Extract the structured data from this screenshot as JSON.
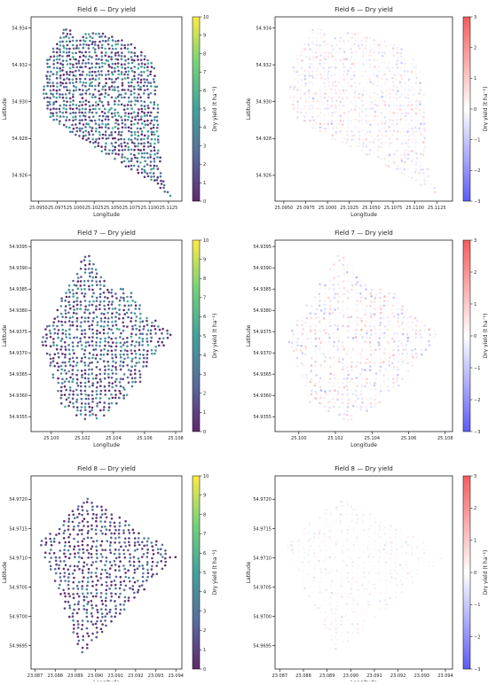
{
  "colors": {
    "viridis": [
      "#440154",
      "#3b528b",
      "#21918c",
      "#5ec962",
      "#fde725"
    ],
    "bwr": [
      "#3f3ff5",
      "#ffffff",
      "#f54040"
    ]
  },
  "chart_data": [
    {
      "type": "scatter",
      "title": "Field 6 — Dry yield",
      "xlabel": "Longitude",
      "ylabel": "Latitude",
      "colorbar_label": "Dry yield (t ha⁻¹)",
      "colormap": "viridis",
      "xlim": [
        25.094,
        25.1143
      ],
      "ylim": [
        54.9246,
        54.9346
      ],
      "xticks": [
        "25.0950",
        "25.0975",
        "25.1000",
        "25.1025",
        "25.1050",
        "25.1075",
        "25.1100",
        "25.1125"
      ],
      "xtick_values": [
        25.095,
        25.0975,
        25.1,
        25.1025,
        25.105,
        25.1075,
        25.11,
        25.1125
      ],
      "yticks": [
        "54.926",
        "54.928",
        "54.930",
        "54.932",
        "54.934"
      ],
      "ytick_values": [
        54.926,
        54.928,
        54.93,
        54.932,
        54.934
      ],
      "cbar_ticks": [
        "0",
        "1",
        "2",
        "3",
        "4",
        "5",
        "6",
        "7",
        "8",
        "9",
        "10"
      ],
      "cbar_range": [
        0,
        10
      ],
      "boundary": [
        [
          25.0962,
          54.9323
        ],
        [
          25.0987,
          54.9342
        ],
        [
          25.1004,
          54.9332
        ],
        [
          25.1009,
          54.9337
        ],
        [
          25.1032,
          54.9338
        ],
        [
          25.106,
          54.9334
        ],
        [
          25.1082,
          54.933
        ],
        [
          25.1109,
          54.9318
        ],
        [
          25.1115,
          54.926
        ],
        [
          25.113,
          54.9248
        ],
        [
          25.1095,
          54.9258
        ],
        [
          25.0965,
          54.929
        ],
        [
          25.0955,
          54.9305
        ]
      ],
      "rows": 46,
      "cols": 40,
      "value_range": [
        0,
        6
      ]
    },
    {
      "type": "scatter",
      "title": "Field 6 — Dry yield",
      "xlabel": "Longitude",
      "ylabel": "Latitude",
      "colorbar_label": "Dry yield (t ha⁻¹)",
      "colormap": "bwr",
      "xlim": [
        25.094,
        25.1143
      ],
      "ylim": [
        54.9246,
        54.9346
      ],
      "xticks": [
        "25.0950",
        "25.0975",
        "25.1000",
        "25.1025",
        "25.1050",
        "25.1075",
        "25.1100",
        "25.1125"
      ],
      "xtick_values": [
        25.095,
        25.0975,
        25.1,
        25.1025,
        25.105,
        25.1075,
        25.11,
        25.1125
      ],
      "yticks": [
        "54.926",
        "54.928",
        "54.930",
        "54.932",
        "54.934"
      ],
      "ytick_values": [
        54.926,
        54.928,
        54.93,
        54.932,
        54.934
      ],
      "cbar_ticks": [
        "−3",
        "−2",
        "−1",
        "0",
        "1",
        "2",
        "3"
      ],
      "cbar_range": [
        -3,
        3
      ],
      "boundary": [
        [
          25.0962,
          54.9323
        ],
        [
          25.0987,
          54.9342
        ],
        [
          25.1004,
          54.9332
        ],
        [
          25.1009,
          54.9337
        ],
        [
          25.1032,
          54.9338
        ],
        [
          25.106,
          54.9334
        ],
        [
          25.1082,
          54.933
        ],
        [
          25.1109,
          54.9318
        ],
        [
          25.1115,
          54.926
        ],
        [
          25.113,
          54.9248
        ],
        [
          25.1095,
          54.9258
        ],
        [
          25.0965,
          54.929
        ],
        [
          25.0955,
          54.9305
        ]
      ],
      "rows": 46,
      "cols": 40,
      "value_range": [
        -1.5,
        1.5
      ]
    },
    {
      "type": "scatter",
      "title": "Field 7 — Dry yield",
      "xlabel": "Longitude",
      "ylabel": "Latitude",
      "colorbar_label": "Dry yield (t ha⁻¹)",
      "colormap": "viridis",
      "xlim": [
        25.0987,
        25.1084
      ],
      "ylim": [
        54.93515,
        54.93965
      ],
      "xticks": [
        "25.100",
        "25.102",
        "25.104",
        "25.106",
        "25.108"
      ],
      "xtick_values": [
        25.1,
        25.102,
        25.104,
        25.106,
        25.108
      ],
      "yticks": [
        "54.9355",
        "54.9360",
        "54.9365",
        "54.9370",
        "54.9375",
        "54.9380",
        "54.9385",
        "54.9390",
        "54.9395"
      ],
      "ytick_values": [
        54.9355,
        54.936,
        54.9365,
        54.937,
        54.9375,
        54.938,
        54.9385,
        54.939,
        54.9395
      ],
      "cbar_ticks": [
        "0",
        "1",
        "2",
        "3",
        "4",
        "5",
        "6",
        "7",
        "8",
        "9",
        "10"
      ],
      "cbar_range": [
        0,
        10
      ],
      "boundary": [
        [
          25.0993,
          54.93735
        ],
        [
          25.1023,
          54.9394
        ],
        [
          25.103,
          54.93895
        ],
        [
          25.1036,
          54.93865
        ],
        [
          25.1052,
          54.93845
        ],
        [
          25.1062,
          54.9379
        ],
        [
          25.1078,
          54.93745
        ],
        [
          25.1071,
          54.93705
        ],
        [
          25.1065,
          54.93685
        ],
        [
          25.1057,
          54.9363
        ],
        [
          25.1045,
          54.93585
        ],
        [
          25.1032,
          54.93545
        ],
        [
          25.1023,
          54.9354
        ],
        [
          25.1015,
          54.93555
        ],
        [
          25.1005,
          54.93585
        ],
        [
          25.1003,
          54.9362
        ]
      ],
      "rows": 42,
      "cols": 34,
      "value_range": [
        0,
        5.5
      ]
    },
    {
      "type": "scatter",
      "title": "Field 7 — Dry yield",
      "xlabel": "Longitude",
      "ylabel": "Latitude",
      "colorbar_label": "Dry yield (t ha⁻¹)",
      "colormap": "bwr",
      "xlim": [
        25.0987,
        25.1084
      ],
      "ylim": [
        54.93515,
        54.93965
      ],
      "xticks": [
        "25.100",
        "25.102",
        "25.104",
        "25.106",
        "25.108"
      ],
      "xtick_values": [
        25.1,
        25.102,
        25.104,
        25.106,
        25.108
      ],
      "yticks": [
        "54.9355",
        "54.9360",
        "54.9365",
        "54.9370",
        "54.9375",
        "54.9380",
        "54.9385",
        "54.9390",
        "54.9395"
      ],
      "ytick_values": [
        54.9355,
        54.936,
        54.9365,
        54.937,
        54.9375,
        54.938,
        54.9385,
        54.939,
        54.9395
      ],
      "cbar_ticks": [
        "−3",
        "−2",
        "−1",
        "0",
        "1",
        "2",
        "3"
      ],
      "cbar_range": [
        -3,
        3
      ],
      "boundary": [
        [
          25.0993,
          54.93735
        ],
        [
          25.1023,
          54.9394
        ],
        [
          25.103,
          54.93895
        ],
        [
          25.1036,
          54.93865
        ],
        [
          25.1052,
          54.93845
        ],
        [
          25.1062,
          54.9379
        ],
        [
          25.1078,
          54.93745
        ],
        [
          25.1071,
          54.93705
        ],
        [
          25.1065,
          54.93685
        ],
        [
          25.1057,
          54.9363
        ],
        [
          25.1045,
          54.93585
        ],
        [
          25.1032,
          54.93545
        ],
        [
          25.1023,
          54.9354
        ],
        [
          25.1015,
          54.93555
        ],
        [
          25.1005,
          54.93585
        ],
        [
          25.1003,
          54.9362
        ]
      ],
      "rows": 42,
      "cols": 34,
      "value_range": [
        -2,
        2
      ]
    },
    {
      "type": "scatter",
      "title": "Field 8 — Dry yield",
      "xlabel": "Longitude",
      "ylabel": "Latitude",
      "colorbar_label": "Dry yield (t ha⁻¹)",
      "colormap": "viridis",
      "xlim": [
        23.0868,
        23.0943
      ],
      "ylim": [
        54.9691,
        54.9724
      ],
      "xticks": [
        "23.087",
        "23.088",
        "23.089",
        "23.090",
        "23.091",
        "23.092",
        "23.093",
        "23.094"
      ],
      "xtick_values": [
        23.087,
        23.088,
        23.089,
        23.09,
        23.091,
        23.092,
        23.093,
        23.094
      ],
      "yticks": [
        "54.9695",
        "54.9700",
        "54.9705",
        "54.9710",
        "54.9715",
        "54.9720"
      ],
      "ytick_values": [
        54.9695,
        54.97,
        54.9705,
        54.971,
        54.9715,
        54.972
      ],
      "cbar_ticks": [
        "0",
        "1",
        "2",
        "3",
        "4",
        "5",
        "6",
        "7",
        "8",
        "9",
        "10"
      ],
      "cbar_range": [
        0,
        10
      ],
      "boundary": [
        [
          23.0872,
          54.97125
        ],
        [
          23.0896,
          54.97205
        ],
        [
          23.0941,
          54.97105
        ],
        [
          23.0893,
          54.96935
        ]
      ],
      "rows": 40,
      "cols": 30,
      "value_range": [
        0,
        4
      ]
    },
    {
      "type": "scatter",
      "title": "Field 8 — Dry yield",
      "xlabel": "Longitude",
      "ylabel": "Latitude",
      "colorbar_label": "Dry yield (t ha⁻¹)",
      "colormap": "bwr",
      "xlim": [
        23.0868,
        23.0943
      ],
      "ylim": [
        54.9691,
        54.9724
      ],
      "xticks": [
        "23.087",
        "23.088",
        "23.089",
        "23.090",
        "23.091",
        "23.092",
        "23.093",
        "23.094"
      ],
      "xtick_values": [
        23.087,
        23.088,
        23.089,
        23.09,
        23.091,
        23.092,
        23.093,
        23.094
      ],
      "yticks": [
        "54.9695",
        "54.9700",
        "54.9705",
        "54.9710",
        "54.9715",
        "54.9720"
      ],
      "ytick_values": [
        54.9695,
        54.97,
        54.9705,
        54.971,
        54.9715,
        54.972
      ],
      "cbar_ticks": [
        "−3",
        "−2",
        "−1",
        "0",
        "1",
        "2",
        "3"
      ],
      "cbar_range": [
        -3,
        3
      ],
      "boundary": [
        [
          23.0872,
          54.97125
        ],
        [
          23.0896,
          54.97205
        ],
        [
          23.0941,
          54.97105
        ],
        [
          23.0893,
          54.96935
        ]
      ],
      "rows": 40,
      "cols": 30,
      "value_range": [
        -0.8,
        0.8
      ]
    }
  ]
}
